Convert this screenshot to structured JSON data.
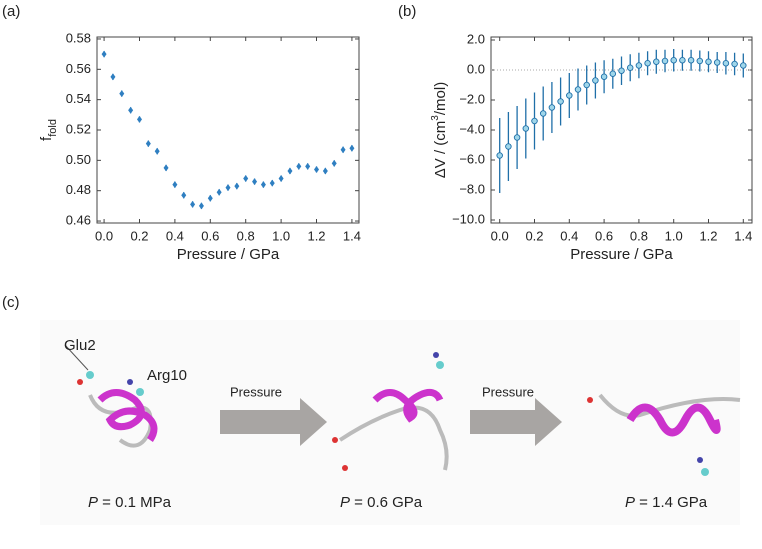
{
  "chart_data": [
    {
      "type": "errorbar",
      "panel": "(a)",
      "xlabel": "Pressure / GPa",
      "ylabel": {
        "main": "f",
        "sub": "fold"
      },
      "x": [
        0,
        0.05,
        0.1,
        0.15,
        0.2,
        0.25,
        0.3,
        0.35,
        0.4,
        0.45,
        0.5,
        0.55,
        0.6,
        0.65,
        0.7,
        0.75,
        0.8,
        0.85,
        0.9,
        0.95,
        1.0,
        1.05,
        1.1,
        1.15,
        1.2,
        1.25,
        1.3,
        1.35,
        1.4
      ],
      "series": [
        {
          "color": "#2f7fc1",
          "marker": "diamond",
          "values": [
            0.57,
            0.555,
            0.544,
            0.533,
            0.527,
            0.511,
            0.506,
            0.495,
            0.484,
            0.477,
            0.471,
            0.47,
            0.475,
            0.479,
            0.482,
            0.483,
            0.488,
            0.486,
            0.484,
            0.485,
            0.488,
            0.493,
            0.496,
            0.496,
            0.494,
            0.493,
            0.498,
            0.507,
            0.508
          ],
          "errors": [
            0.002,
            0.002,
            0.002,
            0.002,
            0.002,
            0.002,
            0.002,
            0.002,
            0.002,
            0.002,
            0.002,
            0.002,
            0.002,
            0.002,
            0.002,
            0.002,
            0.002,
            0.002,
            0.002,
            0.002,
            0.002,
            0.002,
            0.002,
            0.002,
            0.002,
            0.002,
            0.002,
            0.002,
            0.002
          ]
        }
      ],
      "xlim": [
        -0.04,
        1.44
      ],
      "ylim": [
        0.4587,
        0.5813
      ],
      "xticks": [
        {
          "value": 0,
          "label": "0.0"
        },
        0.2,
        0.4,
        0.6,
        0.8,
        {
          "value": 1,
          "label": "1.0"
        },
        1.2,
        1.4
      ],
      "yticks": [
        0.46,
        0.48,
        {
          "value": 0.5,
          "label": "0.50"
        },
        0.52,
        0.54,
        0.56,
        0.58
      ]
    },
    {
      "type": "errorbar",
      "panel": "(b)",
      "xlabel": "Pressure / GPa",
      "ylabel": {
        "parts": [
          "ΔV / (cm",
          "3",
          "/mol)"
        ]
      },
      "zero_line": true,
      "x": [
        0,
        0.05,
        0.1,
        0.15,
        0.2,
        0.25,
        0.3,
        0.35,
        0.4,
        0.45,
        0.5,
        0.55,
        0.6,
        0.65,
        0.7,
        0.75,
        0.8,
        0.85,
        0.9,
        0.95,
        1.0,
        1.05,
        1.1,
        1.15,
        1.2,
        1.25,
        1.3,
        1.35,
        1.4
      ],
      "series": [
        {
          "color": "#1f6fa8",
          "fill": "#9fd6ea",
          "marker": "circle",
          "values": [
            -5.7,
            -5.1,
            -4.5,
            -3.9,
            -3.4,
            -2.9,
            -2.5,
            -2.1,
            -1.7,
            -1.3,
            -1.0,
            -0.7,
            -0.45,
            -0.25,
            -0.05,
            0.15,
            0.3,
            0.45,
            0.55,
            0.6,
            0.65,
            0.65,
            0.65,
            0.6,
            0.55,
            0.5,
            0.45,
            0.4,
            0.3
          ],
          "errors": [
            2.5,
            2.3,
            2.1,
            2.0,
            1.9,
            1.8,
            1.7,
            1.6,
            1.5,
            1.4,
            1.3,
            1.2,
            1.1,
            1.0,
            0.95,
            0.9,
            0.85,
            0.8,
            0.8,
            0.75,
            0.75,
            0.7,
            0.7,
            0.7,
            0.7,
            0.7,
            0.75,
            0.75,
            0.8
          ]
        }
      ],
      "xlim": [
        -0.05,
        1.45
      ],
      "ylim": [
        -10.2,
        2.2
      ],
      "xticks": [
        {
          "value": 0,
          "label": "0.0"
        },
        0.2,
        0.4,
        0.6,
        0.8,
        {
          "value": 1,
          "label": "1.0"
        },
        1.2,
        1.4
      ],
      "yticks": [
        {
          "value": 2,
          "label": "2.0"
        },
        {
          "value": 0,
          "label": "0.0"
        },
        {
          "value": -2,
          "label": "−2.0"
        },
        {
          "value": -4,
          "label": "−4.0"
        },
        {
          "value": -6,
          "label": "−6.0"
        },
        {
          "value": -8,
          "label": "−8.0"
        },
        {
          "value": -10,
          "label": "−10.0"
        }
      ]
    }
  ],
  "diagram": {
    "panel": "(c)",
    "labels": [
      "Glu2",
      "Arg10"
    ],
    "arrows": [
      "Pressure",
      "Pressure"
    ],
    "states": [
      {
        "symbol": "P",
        "text": " = 0.1 MPa"
      },
      {
        "symbol": "P",
        "text": " = 0.6 GPa"
      },
      {
        "symbol": "P",
        "text": " = 1.4 GPa"
      }
    ]
  }
}
